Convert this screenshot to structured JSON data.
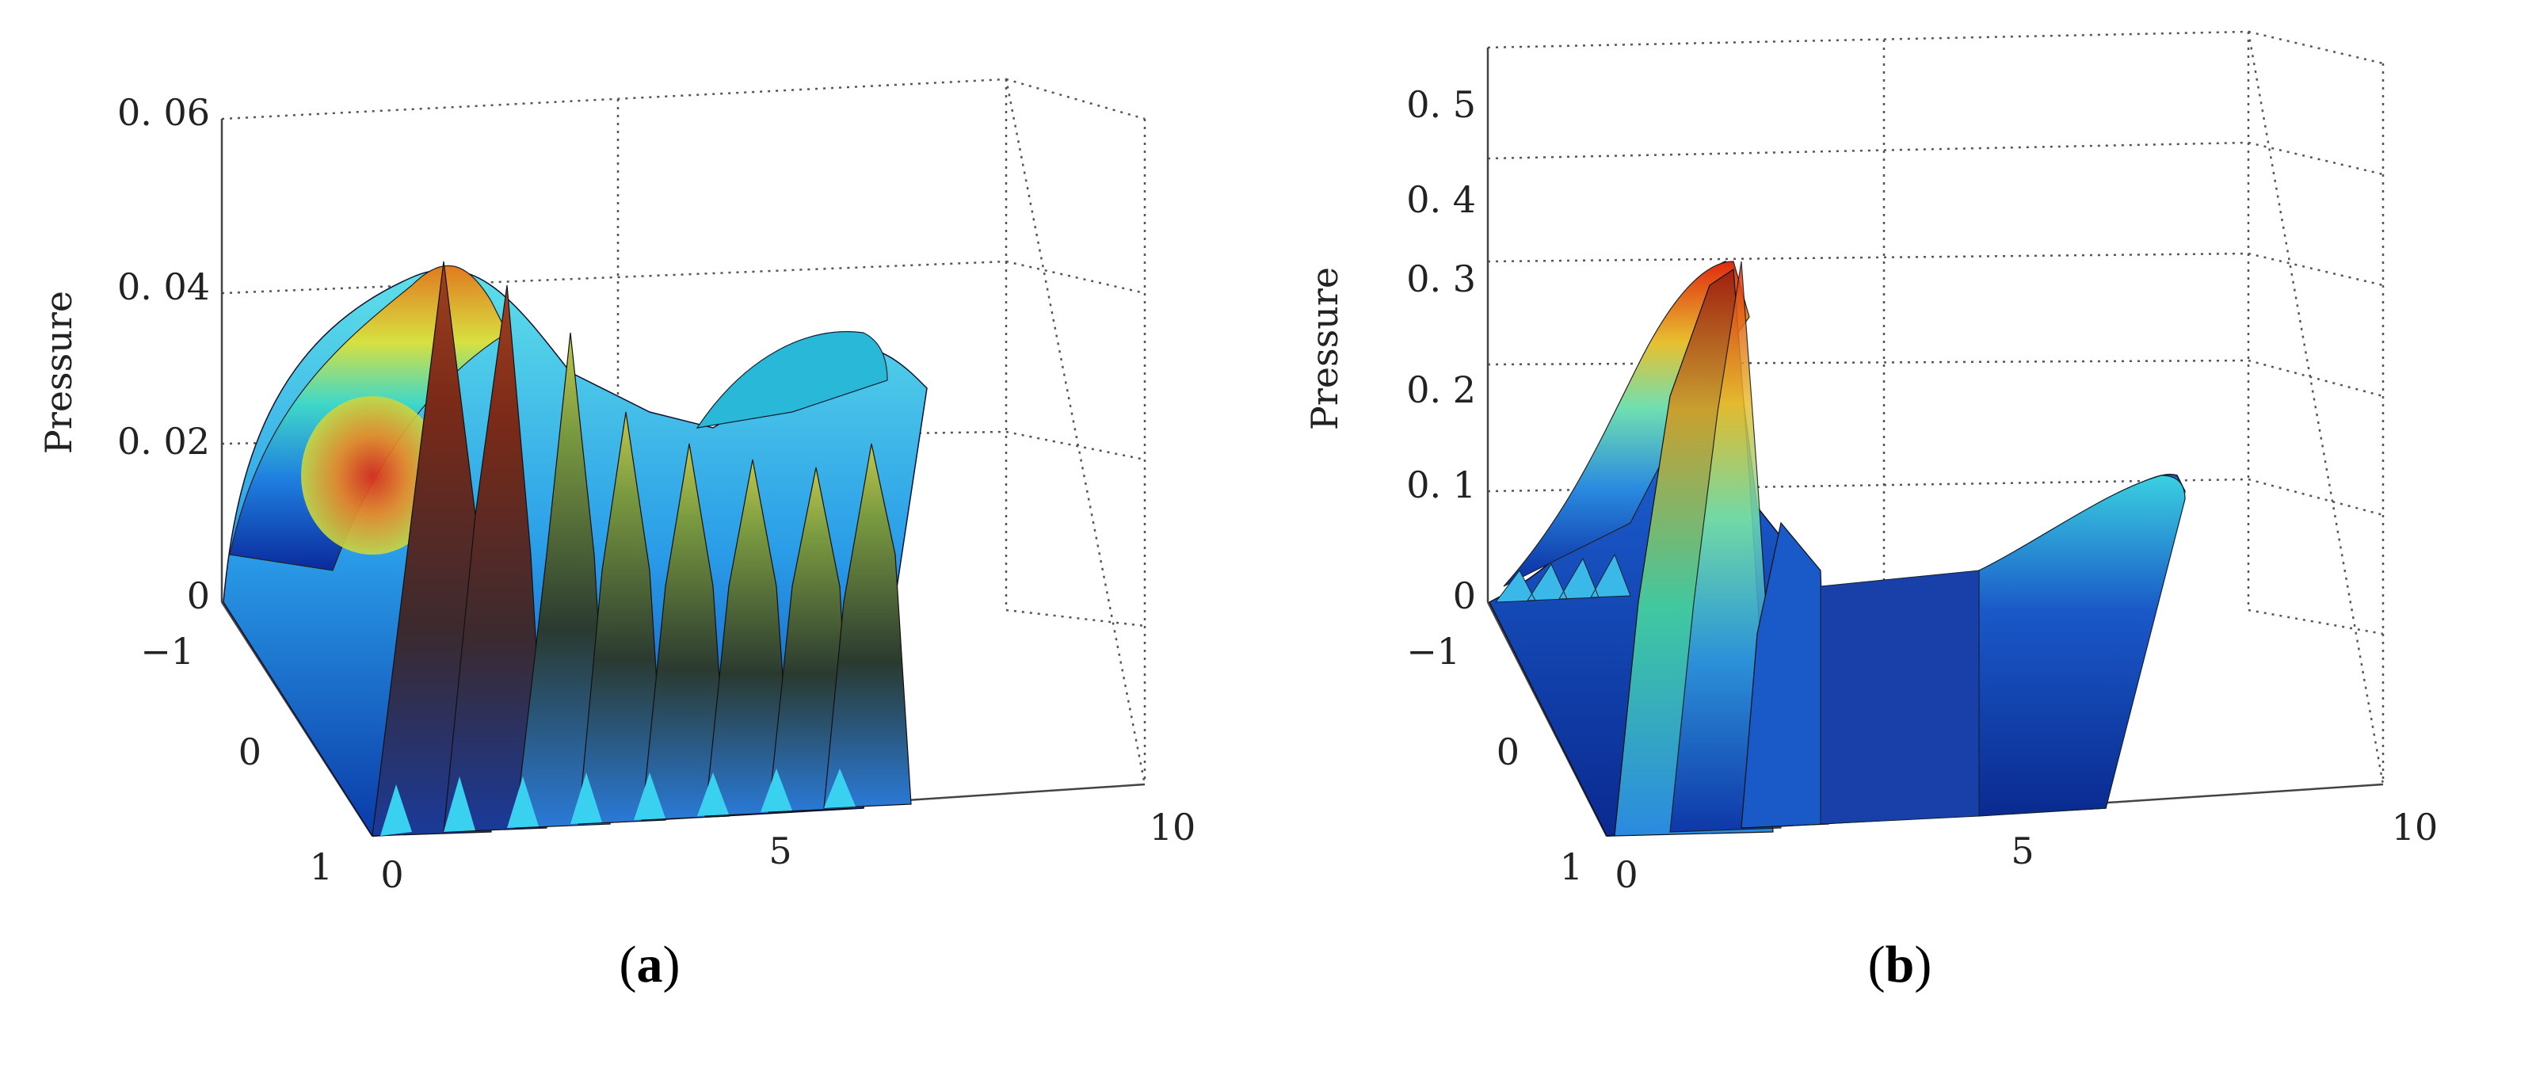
{
  "chart_data": [
    {
      "id": "a",
      "type": "surface",
      "caption_label": "a",
      "zlabel": "Pressure",
      "zlim": [
        0,
        0.06
      ],
      "z_ticks": [
        "0",
        "0. 02",
        "0. 04",
        "0. 06"
      ],
      "y_ticks": [
        "−1",
        "0",
        "1"
      ],
      "x_ticks": [
        "0",
        "5",
        "10"
      ],
      "xlim": [
        0,
        10
      ],
      "ylim": [
        -1,
        1
      ],
      "grid": true,
      "colormap": "jet",
      "approx_peak_pressure": 0.043,
      "approx_peak_x": 1.2
    },
    {
      "id": "b",
      "type": "surface",
      "caption_label": "b",
      "zlabel": "Pressure",
      "zlim": [
        0,
        0.5
      ],
      "z_ticks": [
        "0",
        "0. 1",
        "0. 2",
        "0. 3",
        "0. 4",
        "0. 5"
      ],
      "y_ticks": [
        "−1",
        "0",
        "1"
      ],
      "x_ticks": [
        "0",
        "5",
        "10"
      ],
      "xlim": [
        0,
        10
      ],
      "ylim": [
        -1,
        1
      ],
      "grid": true,
      "colormap": "jet",
      "approx_peak_pressure": 0.34,
      "approx_peak_x": 1.5
    }
  ]
}
